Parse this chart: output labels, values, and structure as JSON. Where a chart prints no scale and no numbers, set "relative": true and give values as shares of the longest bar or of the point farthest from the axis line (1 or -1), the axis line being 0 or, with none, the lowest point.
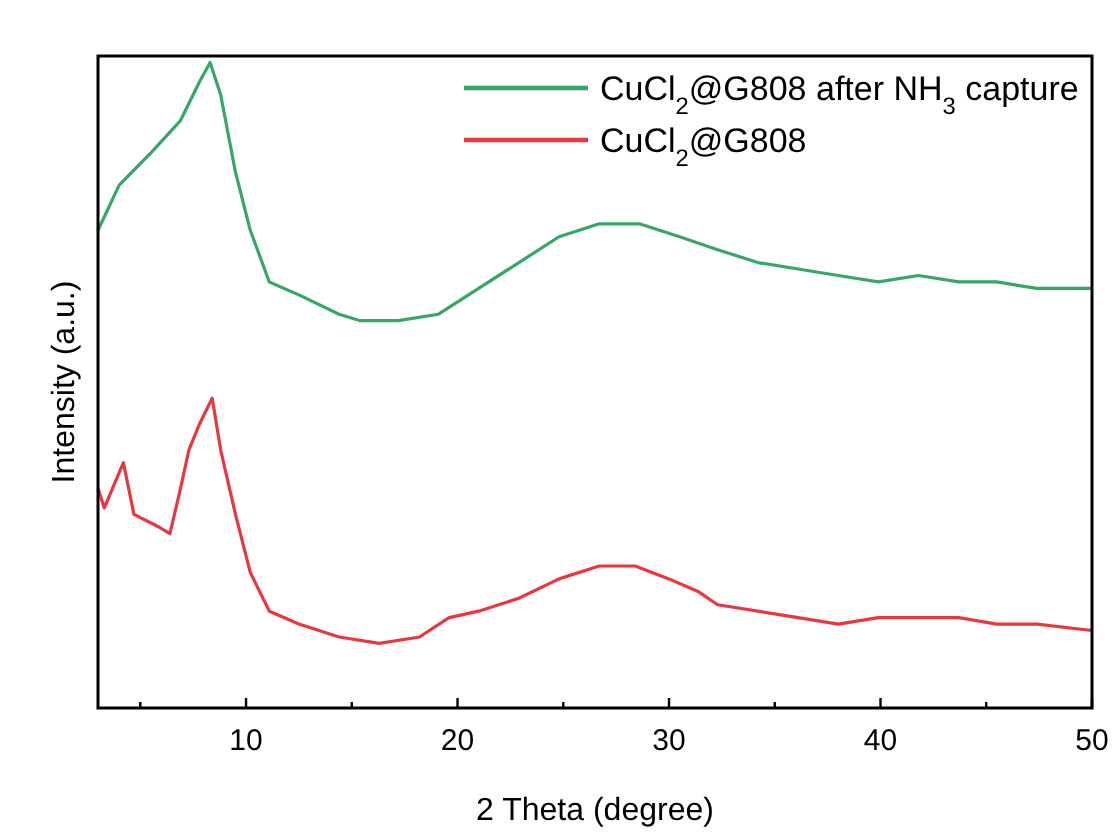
{
  "chart_data": {
    "type": "line",
    "relative": true,
    "xlabel": "2 Theta (degree)",
    "ylabel": "Intensity (a.u.)",
    "xlim": [
      3,
      50
    ],
    "xticks": [
      {
        "value": 5,
        "label": null
      },
      10,
      {
        "value": 15,
        "label": null
      },
      20,
      {
        "value": 25,
        "label": null
      },
      30,
      {
        "value": 35,
        "label": null
      },
      40,
      {
        "value": 45,
        "label": null
      },
      50
    ],
    "tick_labels": "x",
    "legend": "top right",
    "grid": false,
    "marker": "none",
    "line_style": "solid",
    "series": [
      {
        "name": "CuCl$_{2}$@G808 after NH$_{3}$ capture",
        "color": "#36a865",
        "x": [
          3.0,
          4.0,
          5.5,
          6.9,
          7.8,
          8.3,
          8.8,
          9.5,
          10.2,
          11.1,
          12.5,
          14.4,
          15.4,
          17.2,
          19.1,
          21.0,
          22.9,
          24.8,
          26.7,
          28.6,
          30.5,
          32.3,
          34.2,
          36.1,
          38.0,
          39.9,
          41.8,
          43.7,
          45.5,
          47.4,
          50.0
        ],
        "values": [
          0.74,
          0.81,
          0.86,
          0.91,
          0.97,
          1.0,
          0.95,
          0.83,
          0.74,
          0.66,
          0.64,
          0.61,
          0.6,
          0.6,
          0.61,
          0.65,
          0.69,
          0.73,
          0.75,
          0.75,
          0.73,
          0.71,
          0.69,
          0.68,
          0.67,
          0.66,
          0.67,
          0.66,
          0.66,
          0.65,
          0.65
        ]
      },
      {
        "name": "CuCl$_{2}$@G808",
        "color": "#e8383d",
        "x": [
          3.0,
          3.3,
          4.2,
          4.7,
          5.9,
          6.4,
          6.9,
          7.3,
          7.8,
          8.4,
          8.8,
          9.5,
          10.2,
          11.1,
          12.5,
          14.4,
          16.3,
          18.2,
          19.6,
          21.0,
          22.9,
          24.8,
          26.7,
          28.4,
          30.0,
          31.4,
          32.3,
          34.2,
          36.1,
          38.0,
          39.9,
          41.8,
          43.7,
          45.5,
          47.4,
          50.0
        ],
        "values": [
          0.34,
          0.31,
          0.38,
          0.3,
          0.28,
          0.27,
          0.34,
          0.4,
          0.44,
          0.48,
          0.4,
          0.3,
          0.21,
          0.15,
          0.13,
          0.11,
          0.1,
          0.11,
          0.14,
          0.15,
          0.17,
          0.2,
          0.22,
          0.22,
          0.2,
          0.18,
          0.16,
          0.15,
          0.14,
          0.13,
          0.14,
          0.14,
          0.14,
          0.13,
          0.13,
          0.12
        ]
      }
    ]
  }
}
